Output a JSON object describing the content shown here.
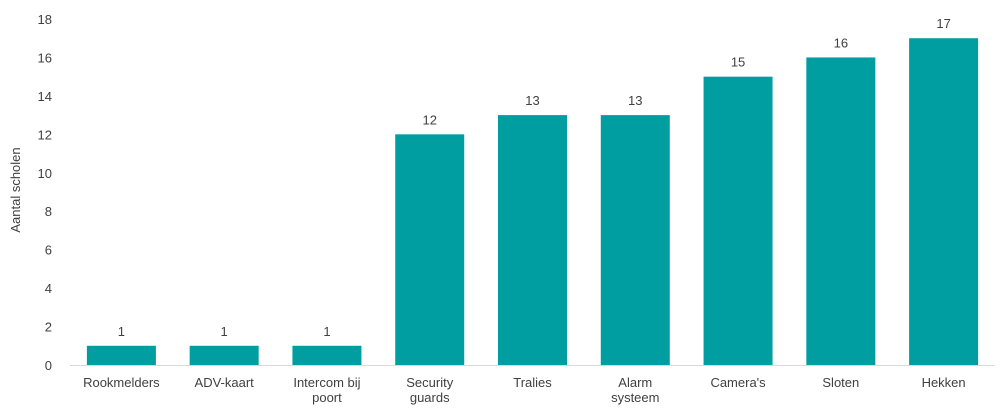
{
  "chart_data": {
    "type": "bar",
    "categories": [
      [
        "Rookmelders"
      ],
      [
        "ADV-kaart"
      ],
      [
        "Intercom bij",
        "poort"
      ],
      [
        "Security",
        "guards"
      ],
      [
        "Tralies"
      ],
      [
        "Alarm",
        "systeem"
      ],
      [
        "Camera's"
      ],
      [
        "Sloten"
      ],
      [
        "Hekken"
      ]
    ],
    "values": [
      1,
      1,
      1,
      12,
      13,
      13,
      15,
      16,
      17
    ],
    "title": "",
    "xlabel": "",
    "ylabel": "Aantal scholen",
    "ylim": [
      0,
      18
    ],
    "yticks": [
      0,
      2,
      4,
      6,
      8,
      10,
      12,
      14,
      16,
      18
    ],
    "grid": false,
    "data_labels": true,
    "bar_color": "#009ea0"
  }
}
